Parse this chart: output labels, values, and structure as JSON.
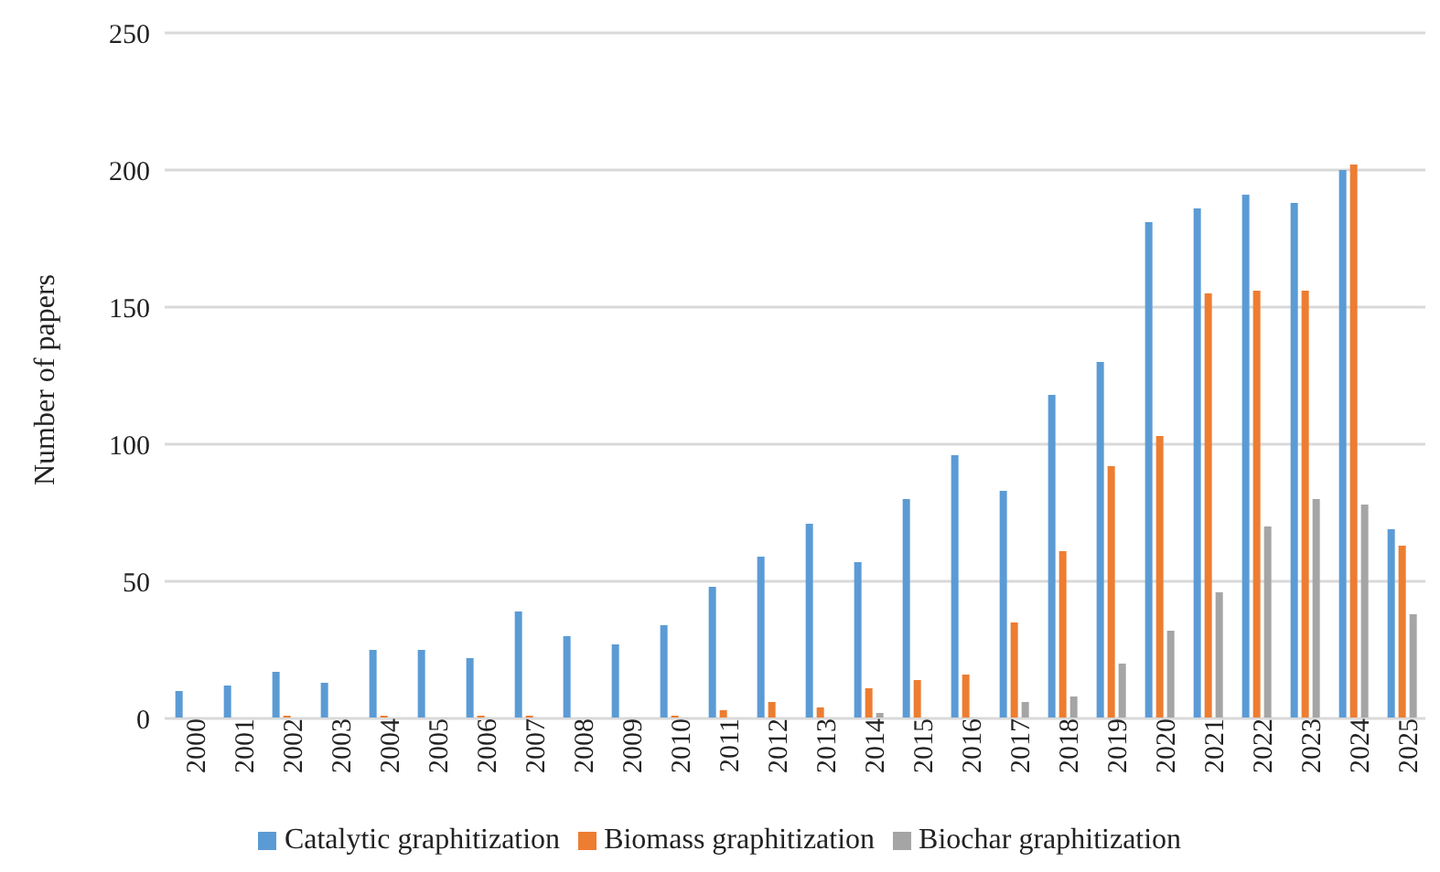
{
  "chart_data": {
    "type": "bar",
    "ylabel": "Number of papers",
    "categories": [
      "2000",
      "2001",
      "2002",
      "2003",
      "2004",
      "2005",
      "2006",
      "2007",
      "2008",
      "2009",
      "2010",
      "2011",
      "2012",
      "2013",
      "2014",
      "2015",
      "2016",
      "2017",
      "2018",
      "2019",
      "2020",
      "2021",
      "2022",
      "2023",
      "2024",
      "2025"
    ],
    "series": [
      {
        "name": "Catalytic graphitization",
        "color": "#5b9bd5",
        "values": [
          10,
          12,
          17,
          13,
          25,
          25,
          22,
          39,
          30,
          27,
          34,
          48,
          59,
          71,
          57,
          80,
          96,
          83,
          118,
          130,
          181,
          186,
          191,
          188,
          200,
          69
        ]
      },
      {
        "name": "Biomass graphitization",
        "color": "#ed7d31",
        "values": [
          0,
          0,
          1,
          0,
          1,
          0,
          1,
          1,
          0,
          0,
          1,
          3,
          6,
          4,
          11,
          14,
          16,
          35,
          61,
          92,
          103,
          155,
          156,
          156,
          202,
          63
        ]
      },
      {
        "name": "Biochar graphitization",
        "color": "#a5a5a5",
        "values": [
          0,
          0,
          0,
          0,
          0,
          0,
          0,
          0,
          0,
          0,
          0,
          null,
          null,
          0,
          2,
          null,
          null,
          6,
          8,
          20,
          32,
          46,
          70,
          80,
          78,
          38
        ]
      }
    ],
    "ylim": [
      0,
      250
    ],
    "yticks": [
      0,
      50,
      100,
      150,
      200,
      250
    ],
    "grid": "y",
    "legend": "bottom"
  }
}
